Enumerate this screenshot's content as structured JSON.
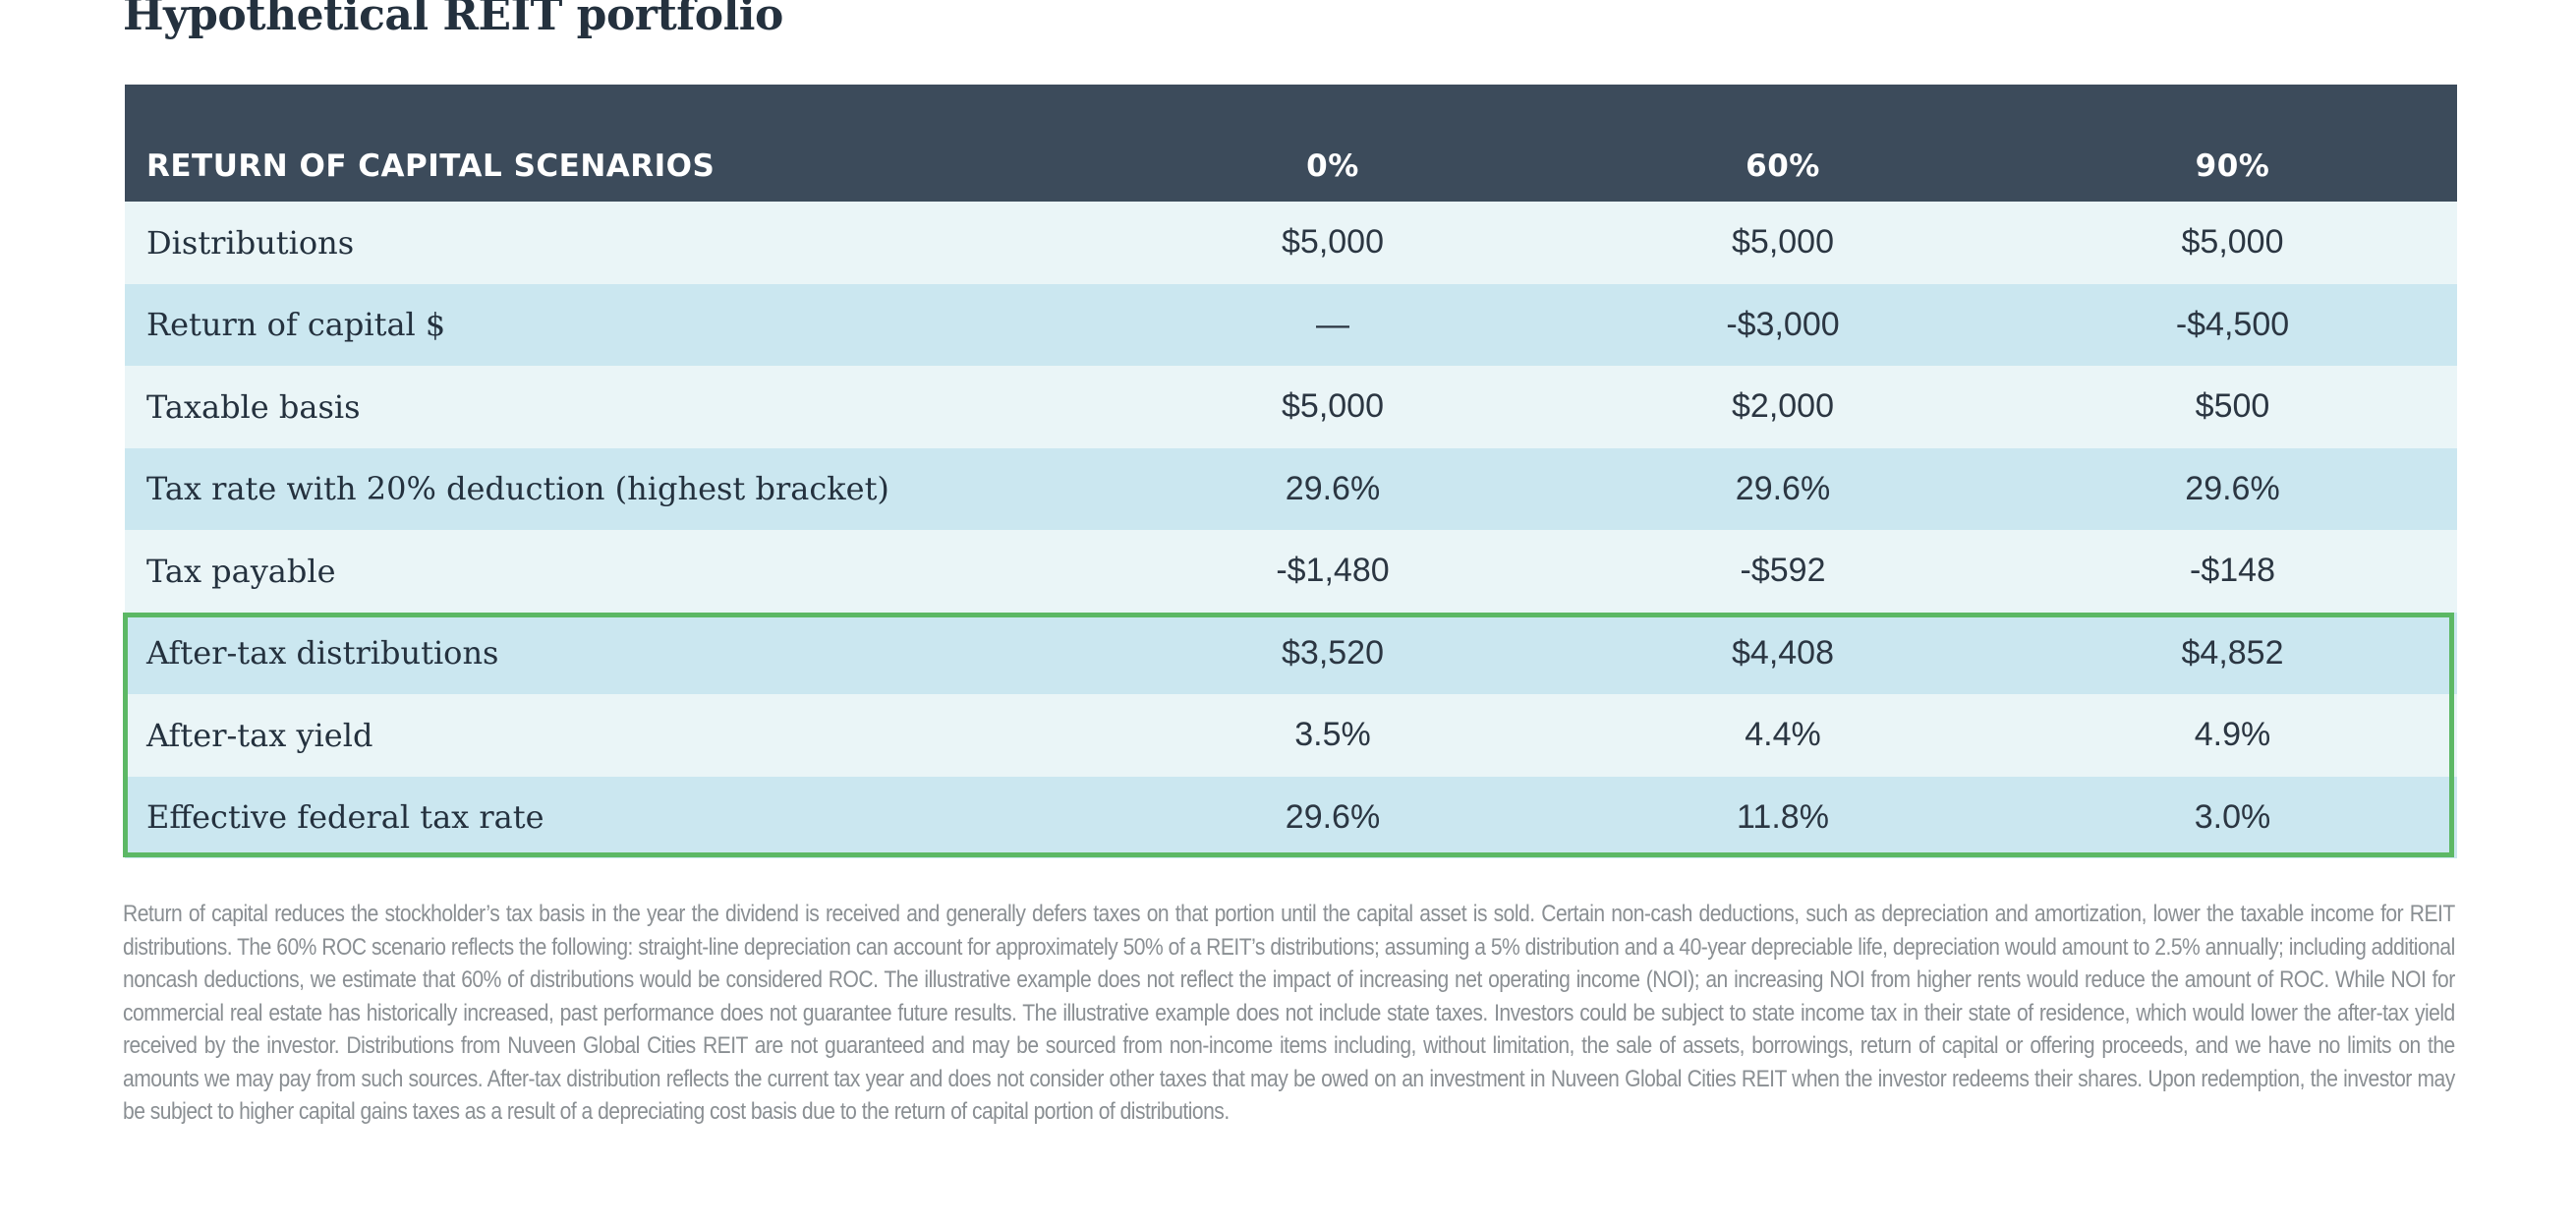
{
  "title": "Hypothetical REIT portfolio",
  "table": {
    "header": [
      "RETURN OF CAPITAL SCENARIOS",
      "0%",
      "60%",
      "90%"
    ],
    "rows": [
      {
        "label": "Distributions",
        "values": [
          "$5,000",
          "$5,000",
          "$5,000"
        ],
        "highlighted": false
      },
      {
        "label": "Return of capital $",
        "values": [
          "—",
          "-$3,000",
          "-$4,500"
        ],
        "highlighted": false
      },
      {
        "label": "Taxable basis",
        "values": [
          "$5,000",
          "$2,000",
          "$500"
        ],
        "highlighted": false
      },
      {
        "label": "Tax rate with 20% deduction (highest bracket)",
        "values": [
          "29.6%",
          "29.6%",
          "29.6%"
        ],
        "highlighted": false
      },
      {
        "label": "Tax payable",
        "values": [
          "-$1,480",
          "-$592",
          "-$148"
        ],
        "highlighted": false
      },
      {
        "label": "After-tax distributions",
        "values": [
          "$3,520",
          "$4,408",
          "$4,852"
        ],
        "highlighted": true
      },
      {
        "label": "After-tax yield",
        "values": [
          "3.5%",
          "4.4%",
          "4.9%"
        ],
        "highlighted": true
      },
      {
        "label": "Effective federal tax rate",
        "values": [
          "29.6%",
          "11.8%",
          "3.0%"
        ],
        "highlighted": true
      }
    ]
  },
  "colors": {
    "header_bg": "#3c4b5b",
    "row_light": "#eaf5f7",
    "row_dark": "#cbe7f0",
    "highlight_border": "#5cb865",
    "footnote_text": "#8a8f93"
  },
  "footnote": "Return of capital reduces the stockholder’s tax basis in the year the dividend is received and generally defers taxes on that portion until the capital asset is sold. Certain non-cash deductions, such as depreciation and amortization, lower the taxable income for REIT distributions. The 60% ROC scenario reflects the following: straight-line depreciation can account for approximately 50% of a REIT’s distributions; assuming a 5% distribution and a 40-year depreciable life, depreciation would amount to 2.5% annually; including additional noncash deductions, we estimate that 60% of distributions would be considered ROC. The illustrative example does not reflect the impact of increasing net operating income (NOI); an increasing NOI from higher rents would reduce the amount of ROC. While NOI for commercial real estate has historically increased, past performance does not guarantee future results. The illustrative example does not include state taxes. Investors could be subject to state income tax in their state of residence, which would lower the after-tax yield received by the investor. Distributions from Nuveen Global Cities REIT are not guaranteed and may be sourced from non-income items including, without limitation, the sale of assets, borrowings, return of capital or offering proceeds, and we have no limits on the amounts we may pay from such sources. After-tax distribution reflects the current tax year and does not consider other taxes that may be owed on an investment in Nuveen Global Cities REIT when the investor redeems their shares. Upon redemption, the investor may be subject to higher capital gains taxes as a result of a depreciating cost basis due to the return of capital portion of distributions."
}
